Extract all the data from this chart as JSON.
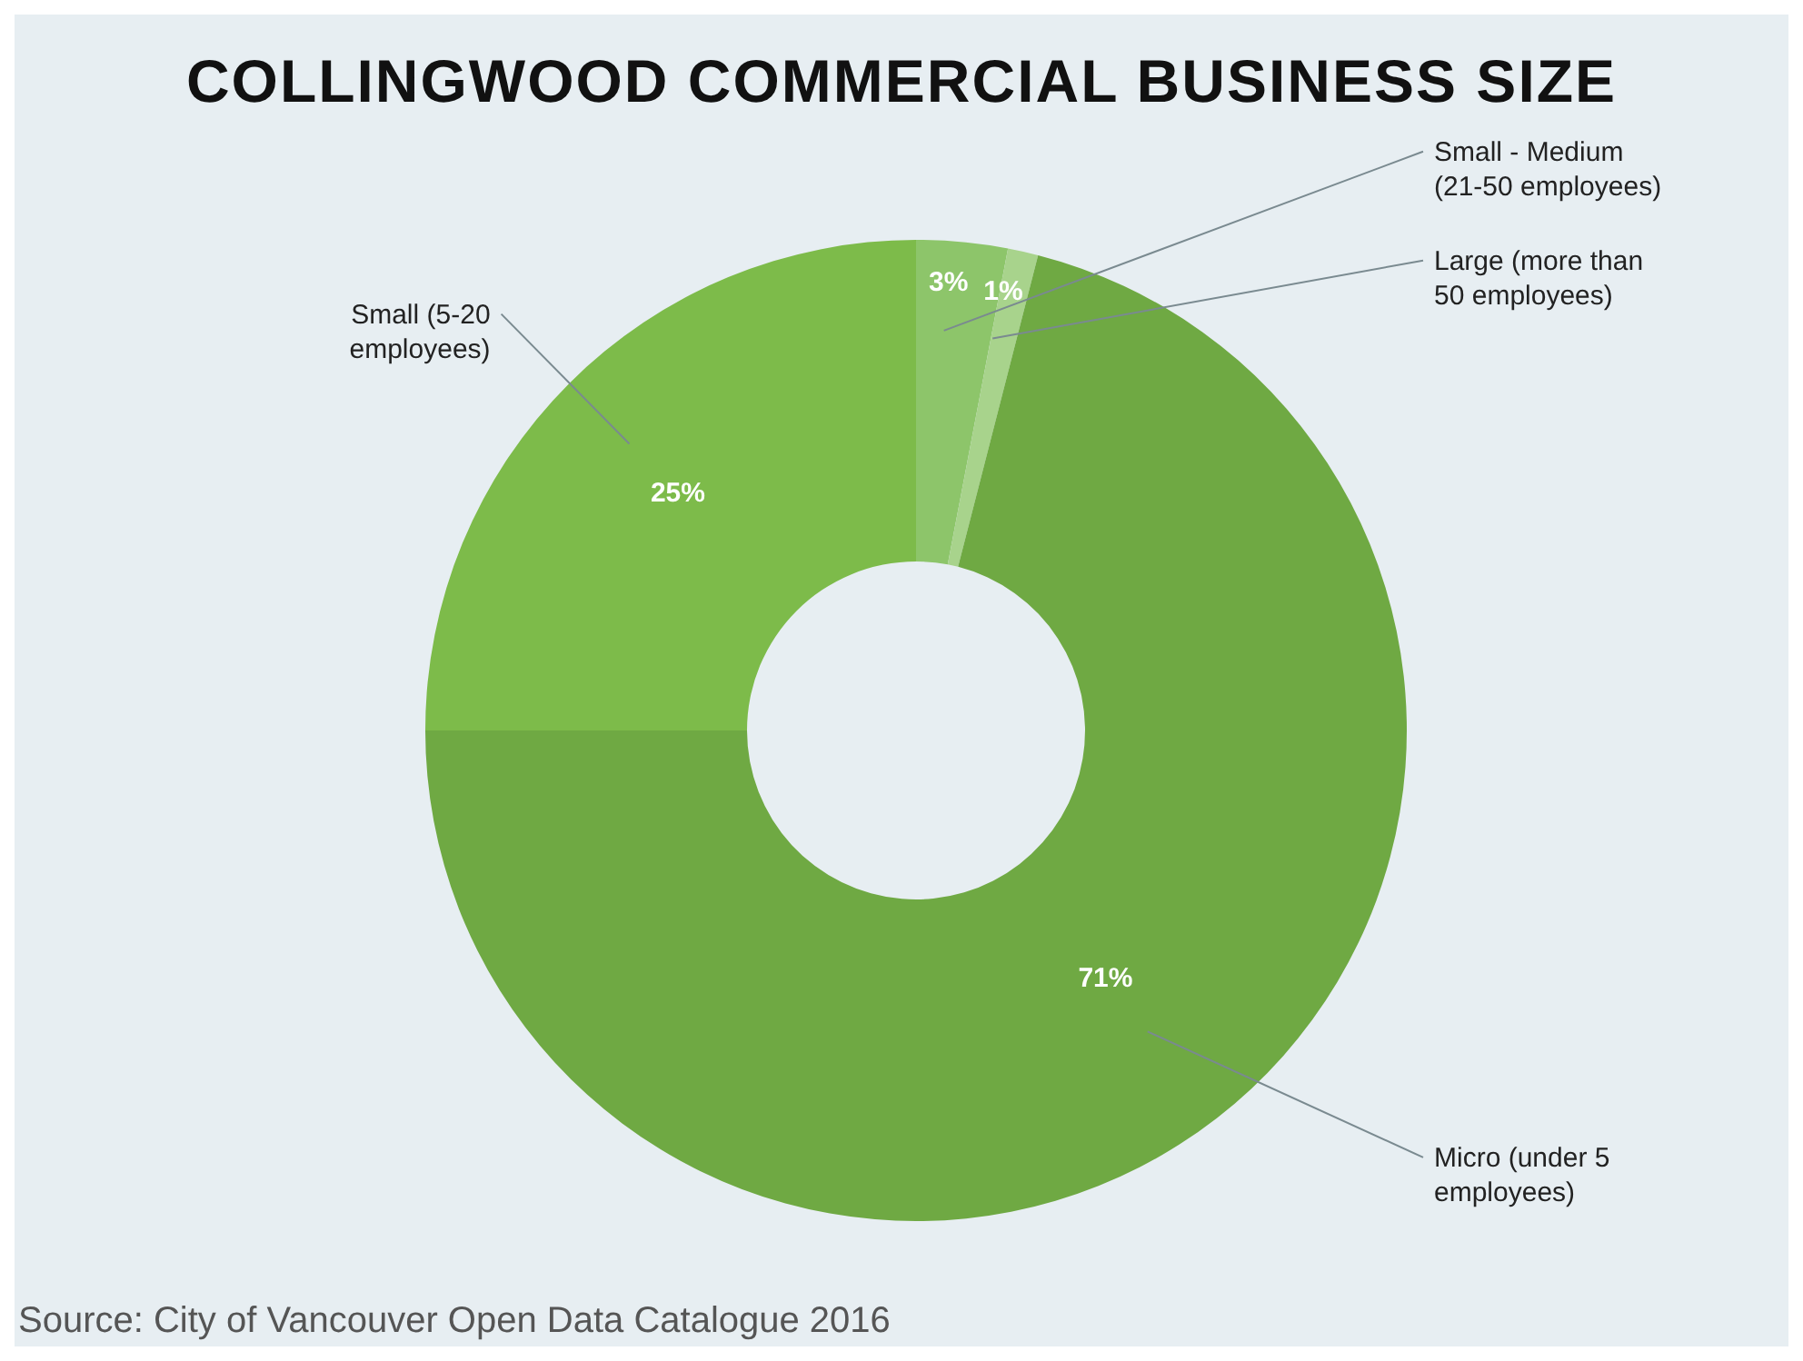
{
  "chart_data": {
    "type": "donut",
    "title": "COLLINGWOOD COMMERCIAL BUSINESS SIZE",
    "categories": [
      "Small - Medium (21-50 employees)",
      "Large (more than 50 employees)",
      "Micro (under 5 employees)",
      "Small (5-20 employees)"
    ],
    "values": [
      3,
      1,
      71,
      25
    ],
    "colors": [
      "#8dc56a",
      "#a8d38c",
      "#6fa943",
      "#7dbb4a"
    ],
    "value_labels": [
      "3%",
      "1%",
      "71%",
      "25%"
    ],
    "annotations": [
      "Source: City of Vancouver Open Data Catalogue 2016"
    ]
  }
}
